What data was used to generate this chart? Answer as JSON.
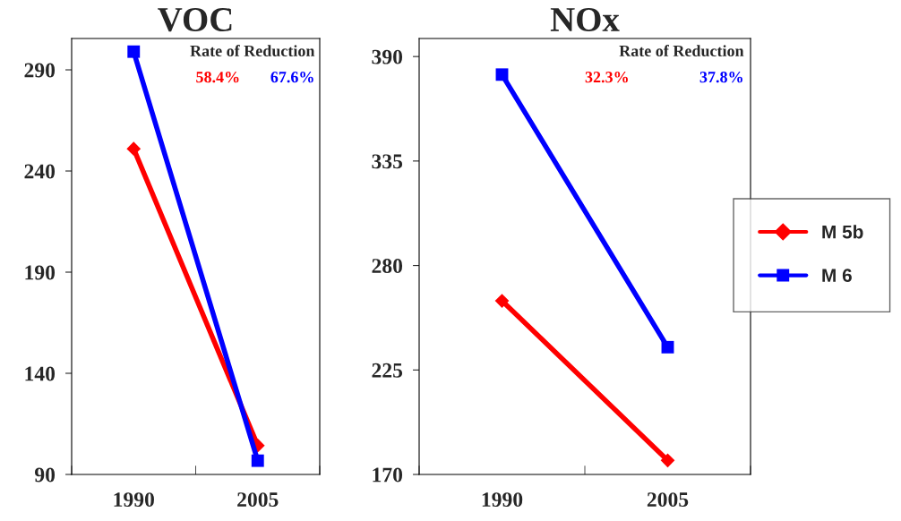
{
  "chart_data": [
    {
      "type": "line",
      "title": "VOC",
      "categories": [
        "1990",
        "2005"
      ],
      "series": [
        {
          "name": "M 5b",
          "color": "#ff0000",
          "marker": "diamond",
          "values": [
            251,
            104.3
          ]
        },
        {
          "name": "M 6",
          "color": "#0000ff",
          "marker": "square",
          "values": [
            299,
            96.8
          ]
        }
      ],
      "ylim": [
        90,
        305.5
      ],
      "yticks": [
        90,
        140,
        190,
        240,
        290
      ],
      "grid": false,
      "legend": "right",
      "annotations": [
        "Rate of Reduction",
        "58.4%",
        "67.6%"
      ]
    },
    {
      "type": "line",
      "title": "NOx",
      "categories": [
        "1990",
        "2005"
      ],
      "series": [
        {
          "color": "#ff0000",
          "marker": "diamond",
          "values": [
            261.4,
            177.4
          ]
        },
        {
          "color": "#0000ff",
          "marker": "square",
          "values": [
            380.5,
            237
          ]
        }
      ],
      "ylim": [
        170,
        399.5
      ],
      "yticks": [
        170,
        225,
        280,
        335,
        390
      ],
      "grid": false,
      "annotations": [
        "Rate of Reduction",
        "32.3%",
        "37.8%"
      ]
    }
  ]
}
